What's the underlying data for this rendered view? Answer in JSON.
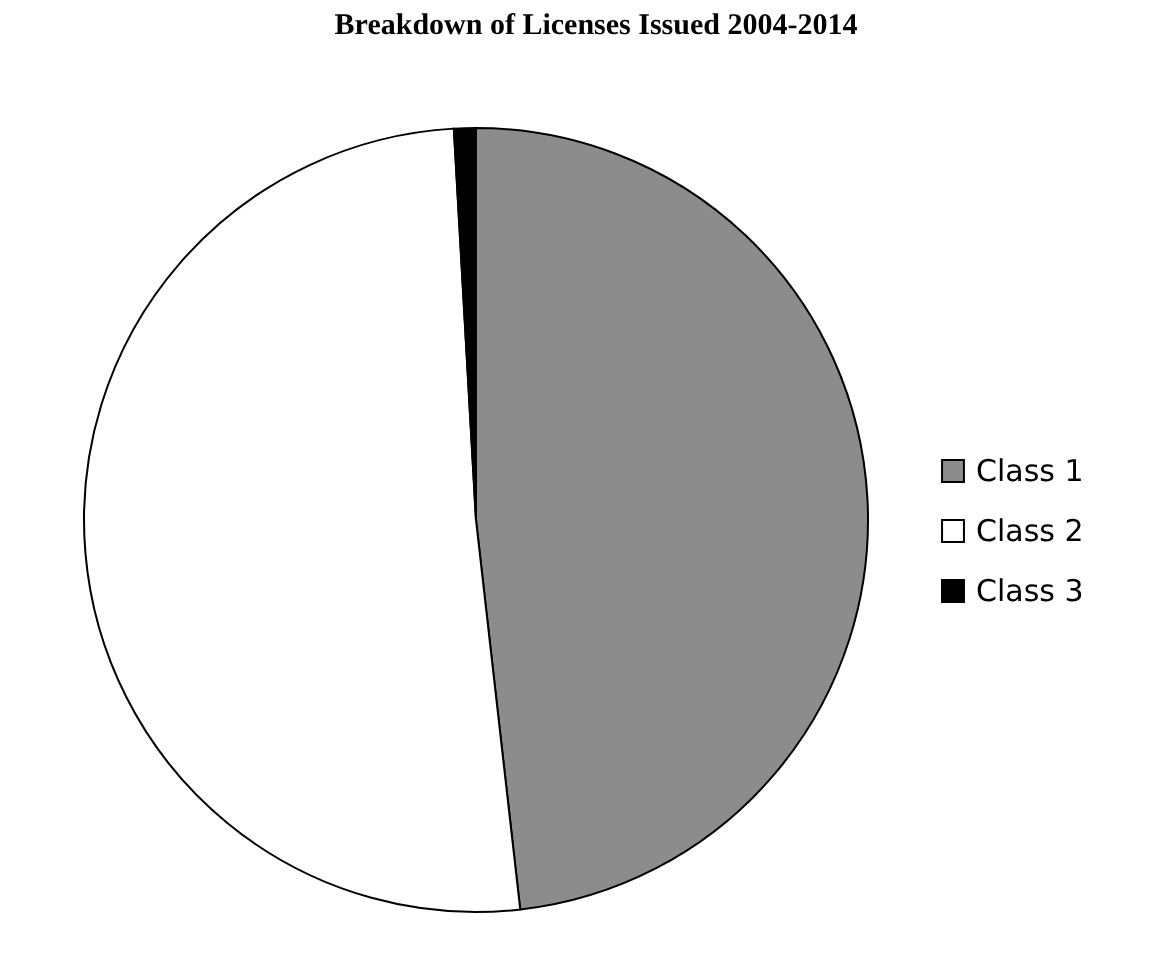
{
  "chart_data": {
    "type": "pie",
    "title": "Breakdown of Licenses Issued 2004-2014",
    "categories": [
      "Class 1",
      "Class 2",
      "Class 3"
    ],
    "values": [
      48.2,
      50.9,
      0.9
    ],
    "colors": [
      "#8c8c8c",
      "#ffffff",
      "#000000"
    ],
    "legend": "right"
  }
}
